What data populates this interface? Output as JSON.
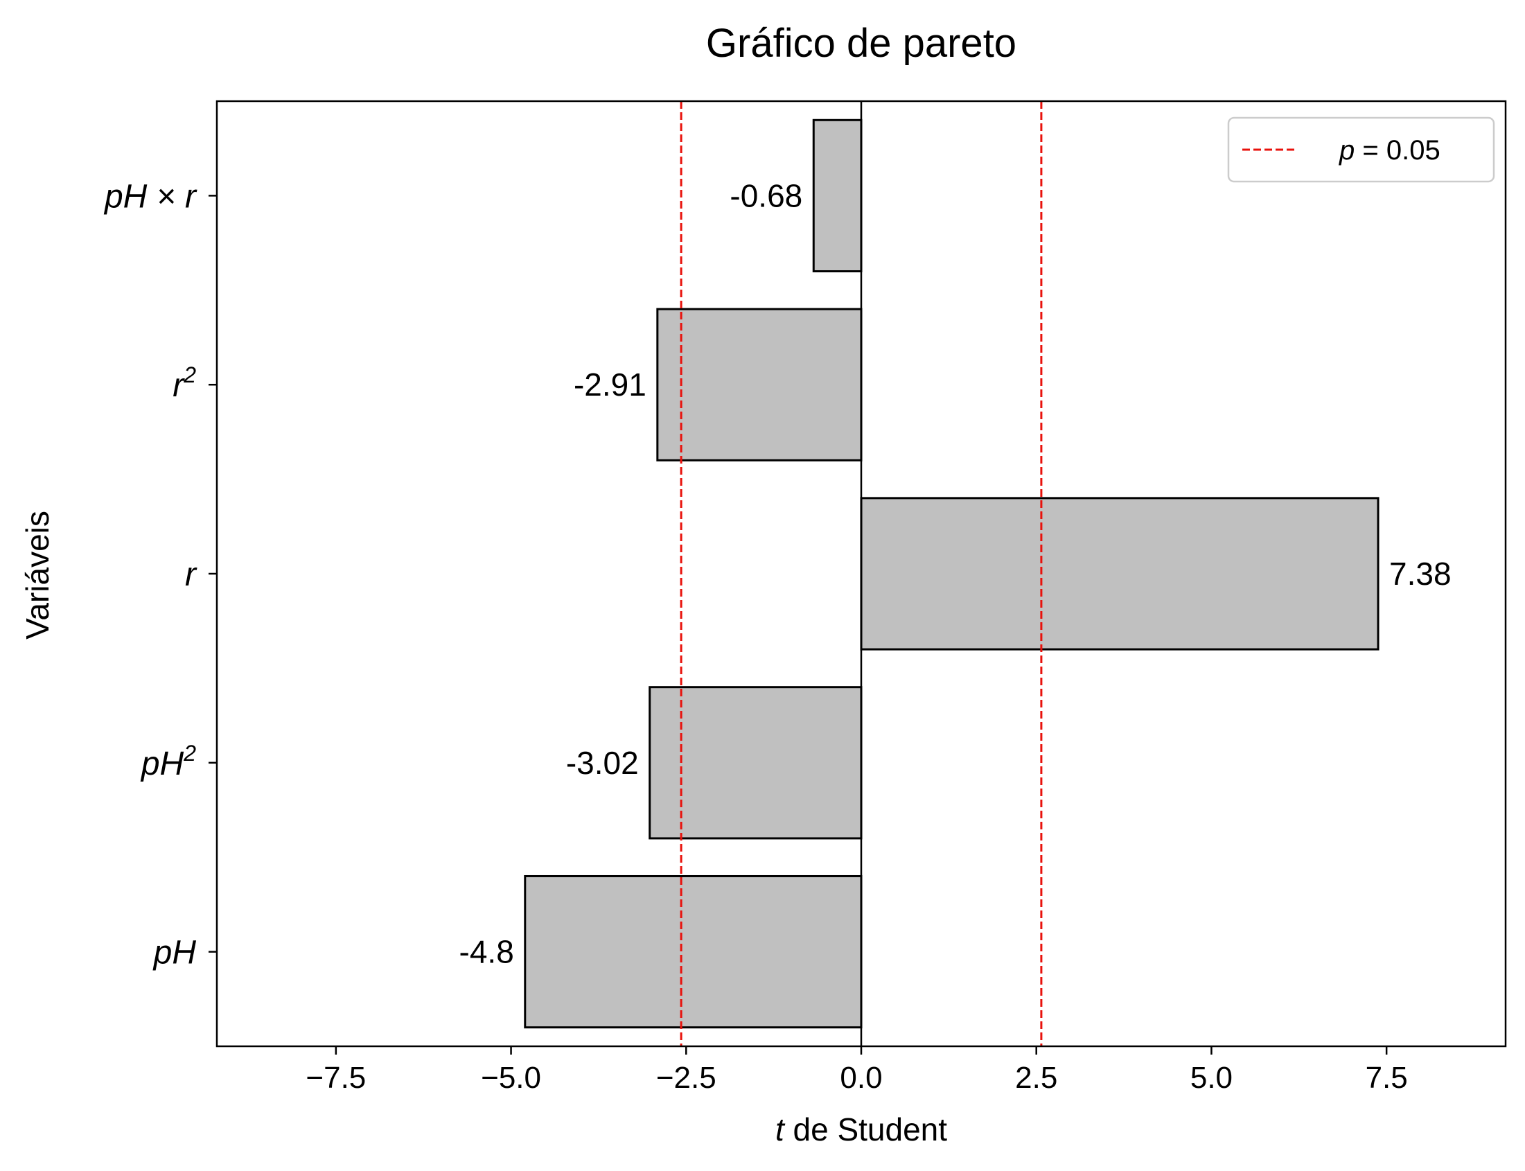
{
  "chart_data": {
    "type": "bar",
    "orientation": "horizontal",
    "title": "Gráfico de pareto",
    "xlabel": {
      "italic": "t",
      "rest": " de Student"
    },
    "ylabel": "Variáveis",
    "xlim": [
      -9.2,
      9.2
    ],
    "xticks": [
      -7.5,
      -5.0,
      -2.5,
      0.0,
      2.5,
      5.0,
      7.5
    ],
    "xtick_labels": [
      "−7.5",
      "−5.0",
      "−2.5",
      "0.0",
      "2.5",
      "5.0",
      "7.5"
    ],
    "categories": [
      {
        "base": "pH",
        "sup": "",
        "times": ""
      },
      {
        "base": "pH",
        "sup": "2",
        "times": ""
      },
      {
        "base": "r",
        "sup": "",
        "times": ""
      },
      {
        "base": "r",
        "sup": "2",
        "times": ""
      },
      {
        "base": "pH",
        "sup": "",
        "times": " × r"
      }
    ],
    "values": [
      -4.8,
      -3.02,
      7.38,
      -2.91,
      -0.68
    ],
    "value_labels": [
      "-4.8",
      "-3.02",
      "7.38",
      "-2.91",
      "-0.68"
    ],
    "bar_color": "#c0c0c0",
    "bar_edge_color": "#000000",
    "reference_lines": {
      "values": [
        -2.571,
        2.571
      ],
      "color": "#e8120c",
      "style": "dashed"
    },
    "legend": {
      "position": "top-right",
      "entries": [
        {
          "italic": "p",
          "rest": " = 0.05"
        }
      ]
    },
    "grid": false
  }
}
